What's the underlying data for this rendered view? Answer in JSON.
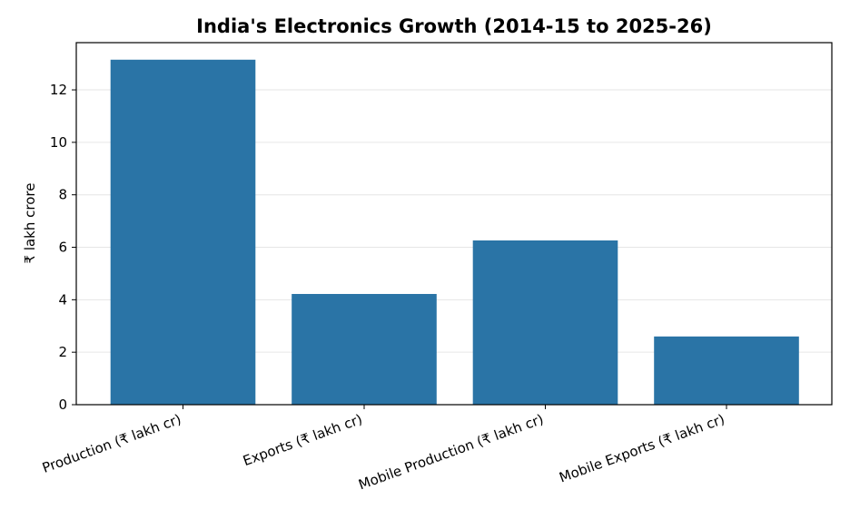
{
  "chart_data": {
    "type": "bar",
    "title": "India's Electronics Growth (2014-15 to 2025-26)",
    "xlabel": "",
    "ylabel": "₹ lakh crore",
    "categories": [
      "Production (₹ lakh cr)",
      "Exports (₹ lakh cr)",
      "Mobile Production (₹ lakh cr)",
      "Mobile Exports (₹ lakh cr)"
    ],
    "values": [
      13.15,
      4.22,
      6.26,
      2.6
    ],
    "ylim": [
      0,
      13.8
    ],
    "yticks": [
      0,
      2,
      4,
      6,
      8,
      10,
      12
    ],
    "grid": "y",
    "bar_color": "#2a74a6"
  }
}
